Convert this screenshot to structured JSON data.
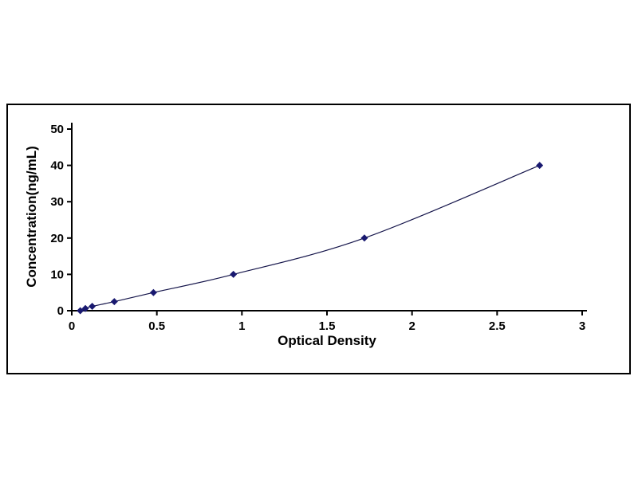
{
  "chart_data": {
    "type": "line",
    "title": "",
    "xlabel": "Optical Density",
    "ylabel": "Concentration(ng/mL)",
    "x": [
      0.05,
      0.08,
      0.12,
      0.25,
      0.48,
      0.95,
      1.72,
      2.75
    ],
    "y": [
      0,
      0.6,
      1.2,
      2.5,
      5,
      10,
      20,
      40
    ],
    "xlim": [
      0,
      3
    ],
    "ylim": [
      0,
      50
    ],
    "xticks": [
      "0",
      "0.5",
      "1",
      "1.5",
      "2",
      "2.5",
      "3"
    ],
    "xtick_values": [
      0,
      0.5,
      1,
      1.5,
      2,
      2.5,
      3
    ],
    "yticks": [
      "0",
      "10",
      "20",
      "30",
      "40",
      "50"
    ],
    "ytick_values": [
      0,
      10,
      20,
      30,
      40,
      50
    ],
    "grid": false,
    "legend": "none",
    "marker": "diamond",
    "line_color": "#14144a",
    "marker_color": "#191970",
    "axis_color": "#000000",
    "border_color": "#000000",
    "background_color": "#ffffff"
  }
}
